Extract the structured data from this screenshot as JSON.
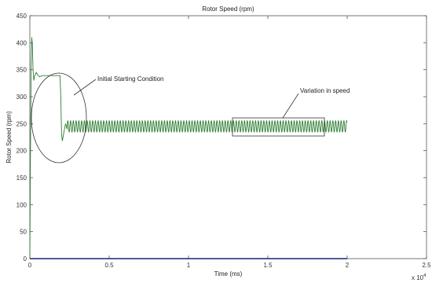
{
  "chart_data": {
    "type": "line",
    "title": "Rotor Speed (rpm)",
    "xlabel": "Time (ms)",
    "ylabel": "Rotor Speed (rpm)",
    "x_multiplier_label": "x 10",
    "x_multiplier_exponent": "4",
    "xlim": [
      0,
      2.5
    ],
    "ylim": [
      0,
      450
    ],
    "xticks": [
      "0",
      "0.5",
      "1",
      "1.5",
      "2",
      "2.5"
    ],
    "yticks": [
      "0",
      "50",
      "100",
      "150",
      "200",
      "250",
      "300",
      "350",
      "400",
      "450"
    ],
    "grid": false,
    "series": [
      {
        "color": "#2e7d32",
        "segments": {
          "startup": [
            [
              0,
              0
            ],
            [
              0.004,
              200
            ],
            [
              0.008,
              355
            ],
            [
              0.012,
              410
            ],
            [
              0.016,
              395
            ],
            [
              0.02,
              350
            ],
            [
              0.025,
              330
            ],
            [
              0.03,
              338
            ],
            [
              0.04,
              345
            ],
            [
              0.05,
              340
            ],
            [
              0.06,
              337
            ],
            [
              0.08,
              339
            ],
            [
              0.1,
              339
            ],
            [
              0.15,
              339
            ],
            [
              0.19,
              339
            ]
          ],
          "drop": [
            [
              0.19,
              339
            ],
            [
              0.195,
              300
            ],
            [
              0.2,
              230
            ],
            [
              0.205,
              218
            ],
            [
              0.215,
              235
            ],
            [
              0.225,
              250
            ],
            [
              0.235,
              240
            ]
          ],
          "oscillation": {
            "x_start": 0.235,
            "x_end": 2.0,
            "mean": 245,
            "amplitude": 11,
            "period": 0.0174
          }
        }
      },
      {
        "color": "#1a237e",
        "points": [
          [
            0,
            0
          ],
          [
            2.0,
            0
          ]
        ]
      }
    ],
    "annotations": [
      {
        "text": "Initial Starting Condition",
        "shape": "ellipse"
      },
      {
        "text": "Variation in speed",
        "shape": "rectangle"
      }
    ]
  }
}
